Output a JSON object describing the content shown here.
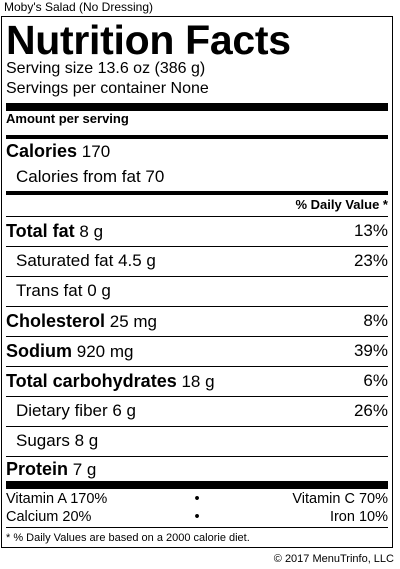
{
  "product": "Moby's Salad (No Dressing)",
  "title": "Nutrition Facts",
  "serving_size": "Serving size 13.6 oz (386 g)",
  "servings_per_container": "Servings per container None",
  "amount_per_serving": "Amount per serving",
  "calories": {
    "label": "Calories",
    "value": "170"
  },
  "calories_from_fat": "Calories from fat 70",
  "daily_value_header": "% Daily Value *",
  "nutrients": [
    {
      "label": "Total fat",
      "amount": "8 g",
      "pct": "13%"
    },
    {
      "label": "Saturated fat",
      "amount": "4.5 g",
      "pct": "23%"
    },
    {
      "label": "Trans fat",
      "amount": "0 g",
      "pct": ""
    },
    {
      "label": "Cholesterol",
      "amount": "25 mg",
      "pct": "8%"
    },
    {
      "label": "Sodium",
      "amount": "920 mg",
      "pct": "39%"
    },
    {
      "label": "Total carbohydrates",
      "amount": "18 g",
      "pct": "6%"
    },
    {
      "label": "Dietary fiber",
      "amount": "6 g",
      "pct": "26%"
    },
    {
      "label": "Sugars",
      "amount": "8 g",
      "pct": ""
    },
    {
      "label": "Protein",
      "amount": "7 g",
      "pct": ""
    }
  ],
  "vitamins": [
    {
      "left": "Vitamin A 170%",
      "right": "Vitamin C 70%"
    },
    {
      "left": "Calcium 20%",
      "right": "Iron 10%"
    }
  ],
  "bullet": "•",
  "footnote": "* % Daily Values are based on a 2000 calorie diet.",
  "copyright": "© 2017 MenuTrinfo, LLC"
}
